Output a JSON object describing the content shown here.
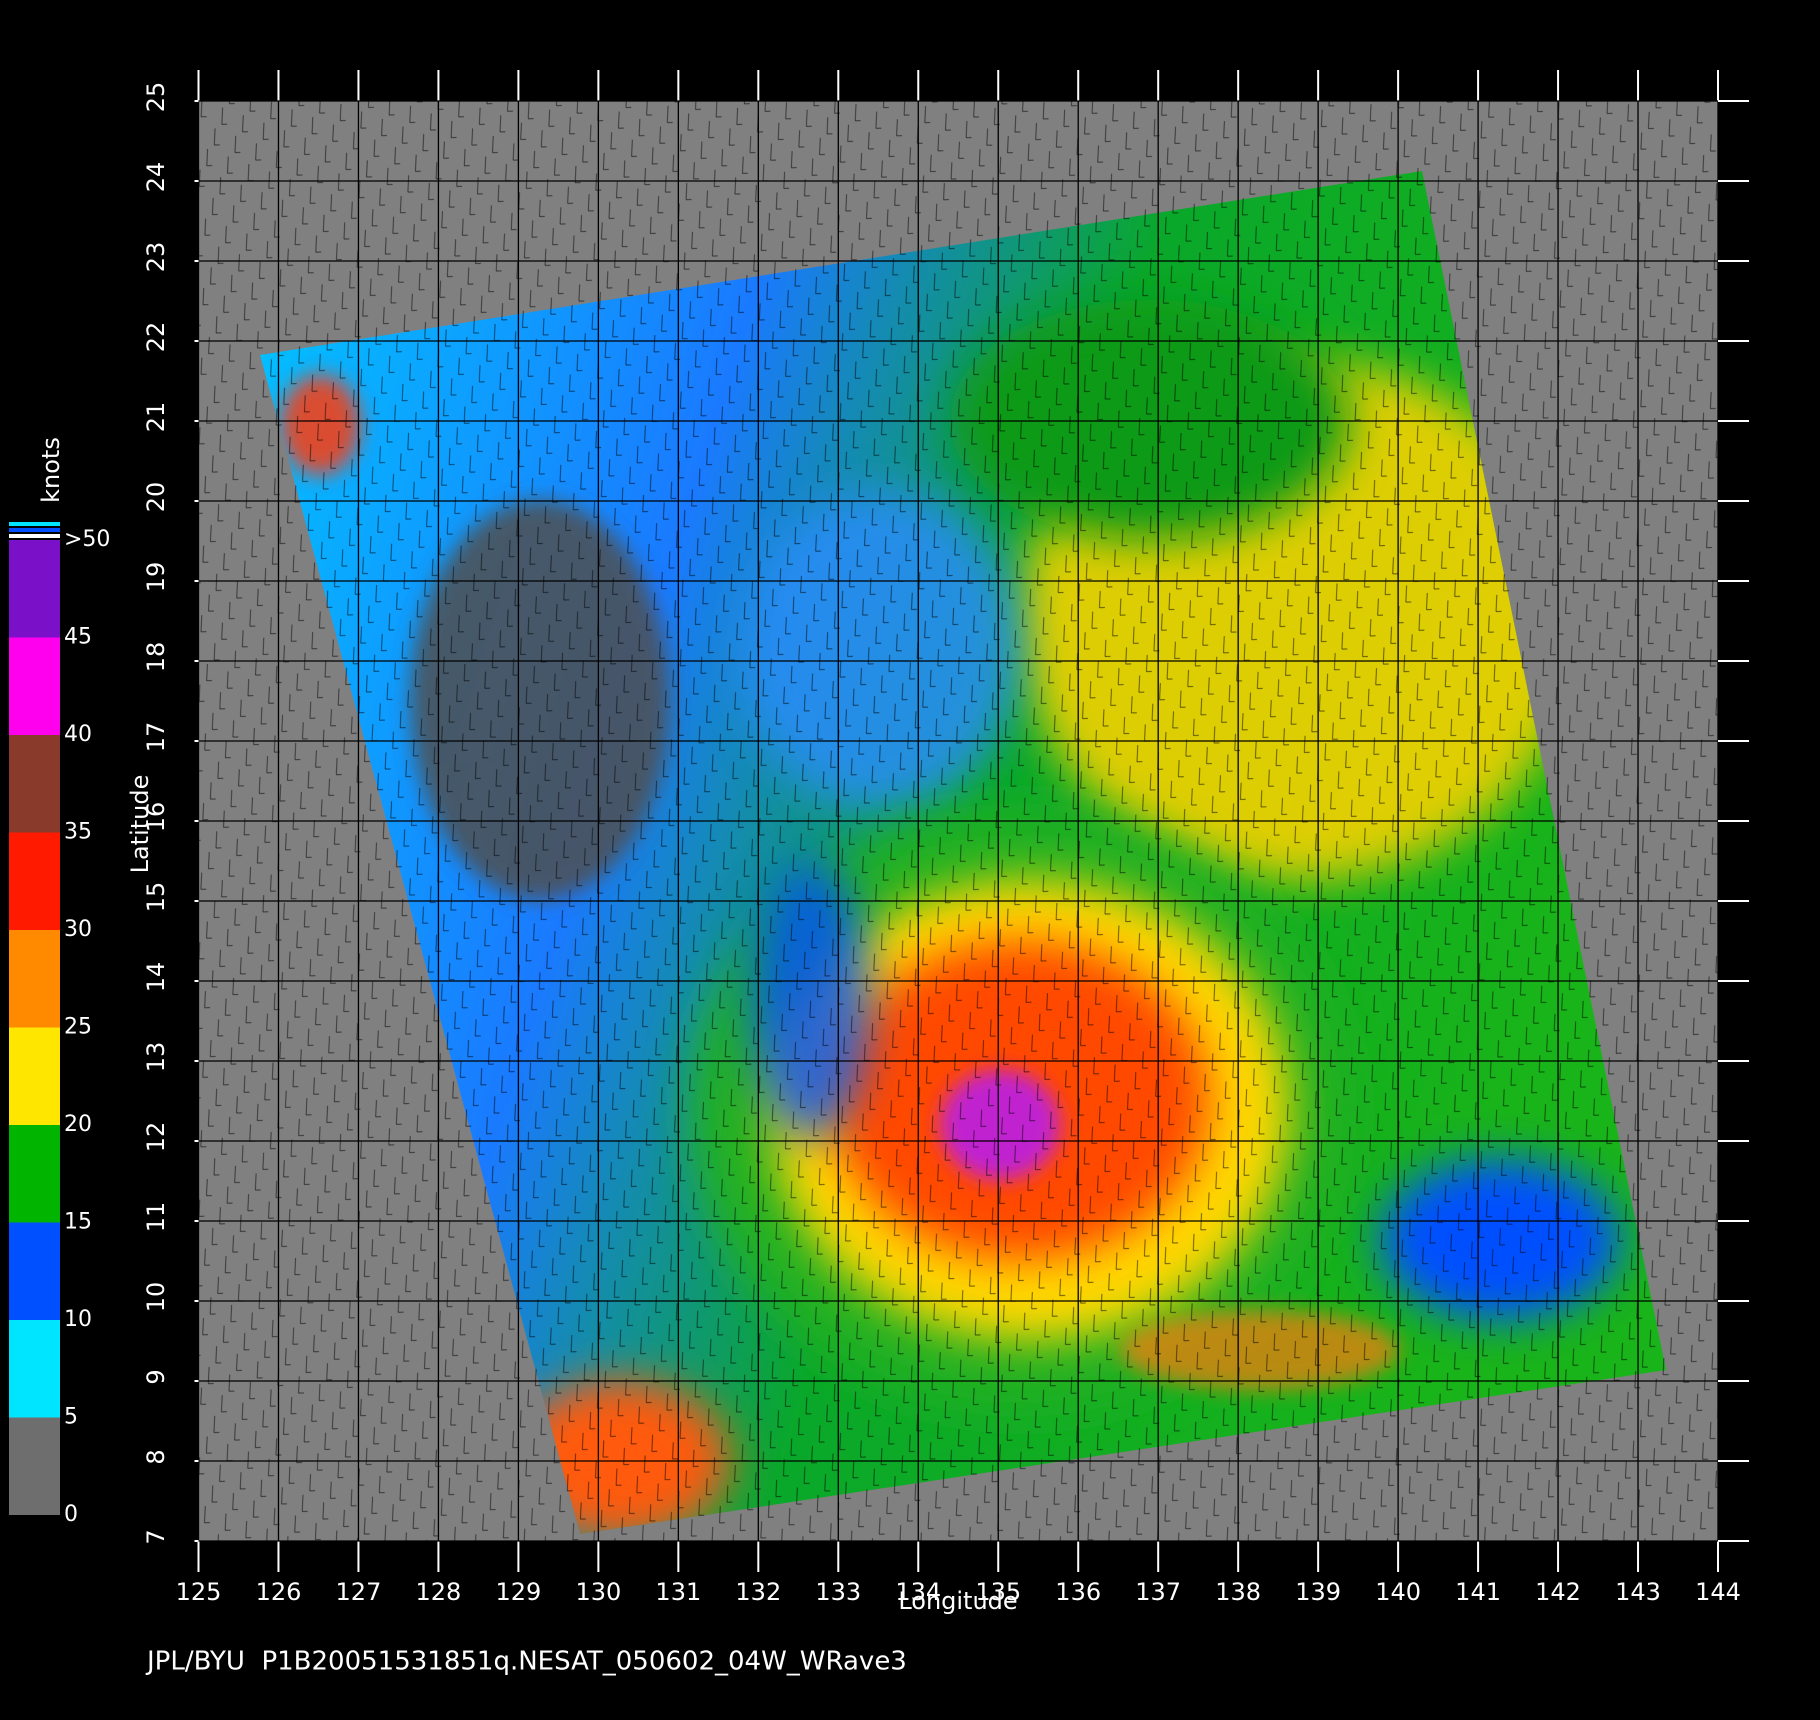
{
  "chart_data": {
    "type": "map",
    "footer": "JPL/BYU  P1B20051531851q.NESAT_050602_04W_WRave3",
    "x_label": "Longitude",
    "y_label": "Latitude",
    "xlim": [
      125,
      144
    ],
    "ylim": [
      7,
      25
    ],
    "xticks": [
      125,
      126,
      127,
      128,
      129,
      130,
      131,
      132,
      133,
      134,
      135,
      136,
      137,
      138,
      139,
      140,
      141,
      142,
      143,
      144
    ],
    "yticks": [
      7,
      8,
      9,
      10,
      11,
      12,
      13,
      14,
      15,
      16,
      17,
      18,
      19,
      20,
      21,
      22,
      23,
      24,
      25
    ],
    "grid": true,
    "colorbar": {
      "label": "knots",
      "range": [
        0,
        50
      ],
      "ticks": [
        0,
        5,
        10,
        15,
        20,
        25,
        30,
        35,
        40,
        45,
        {
          "value": 50,
          "label": ">50"
        }
      ],
      "colors": [
        "#6e6e6e",
        "#00e5ff",
        "#0050ff",
        "#00b400",
        "#ffe600",
        "#ff8a00",
        "#ff1a00",
        "#8a3a2a",
        "#ff00ee",
        "#7a10c8"
      ]
    }
  }
}
